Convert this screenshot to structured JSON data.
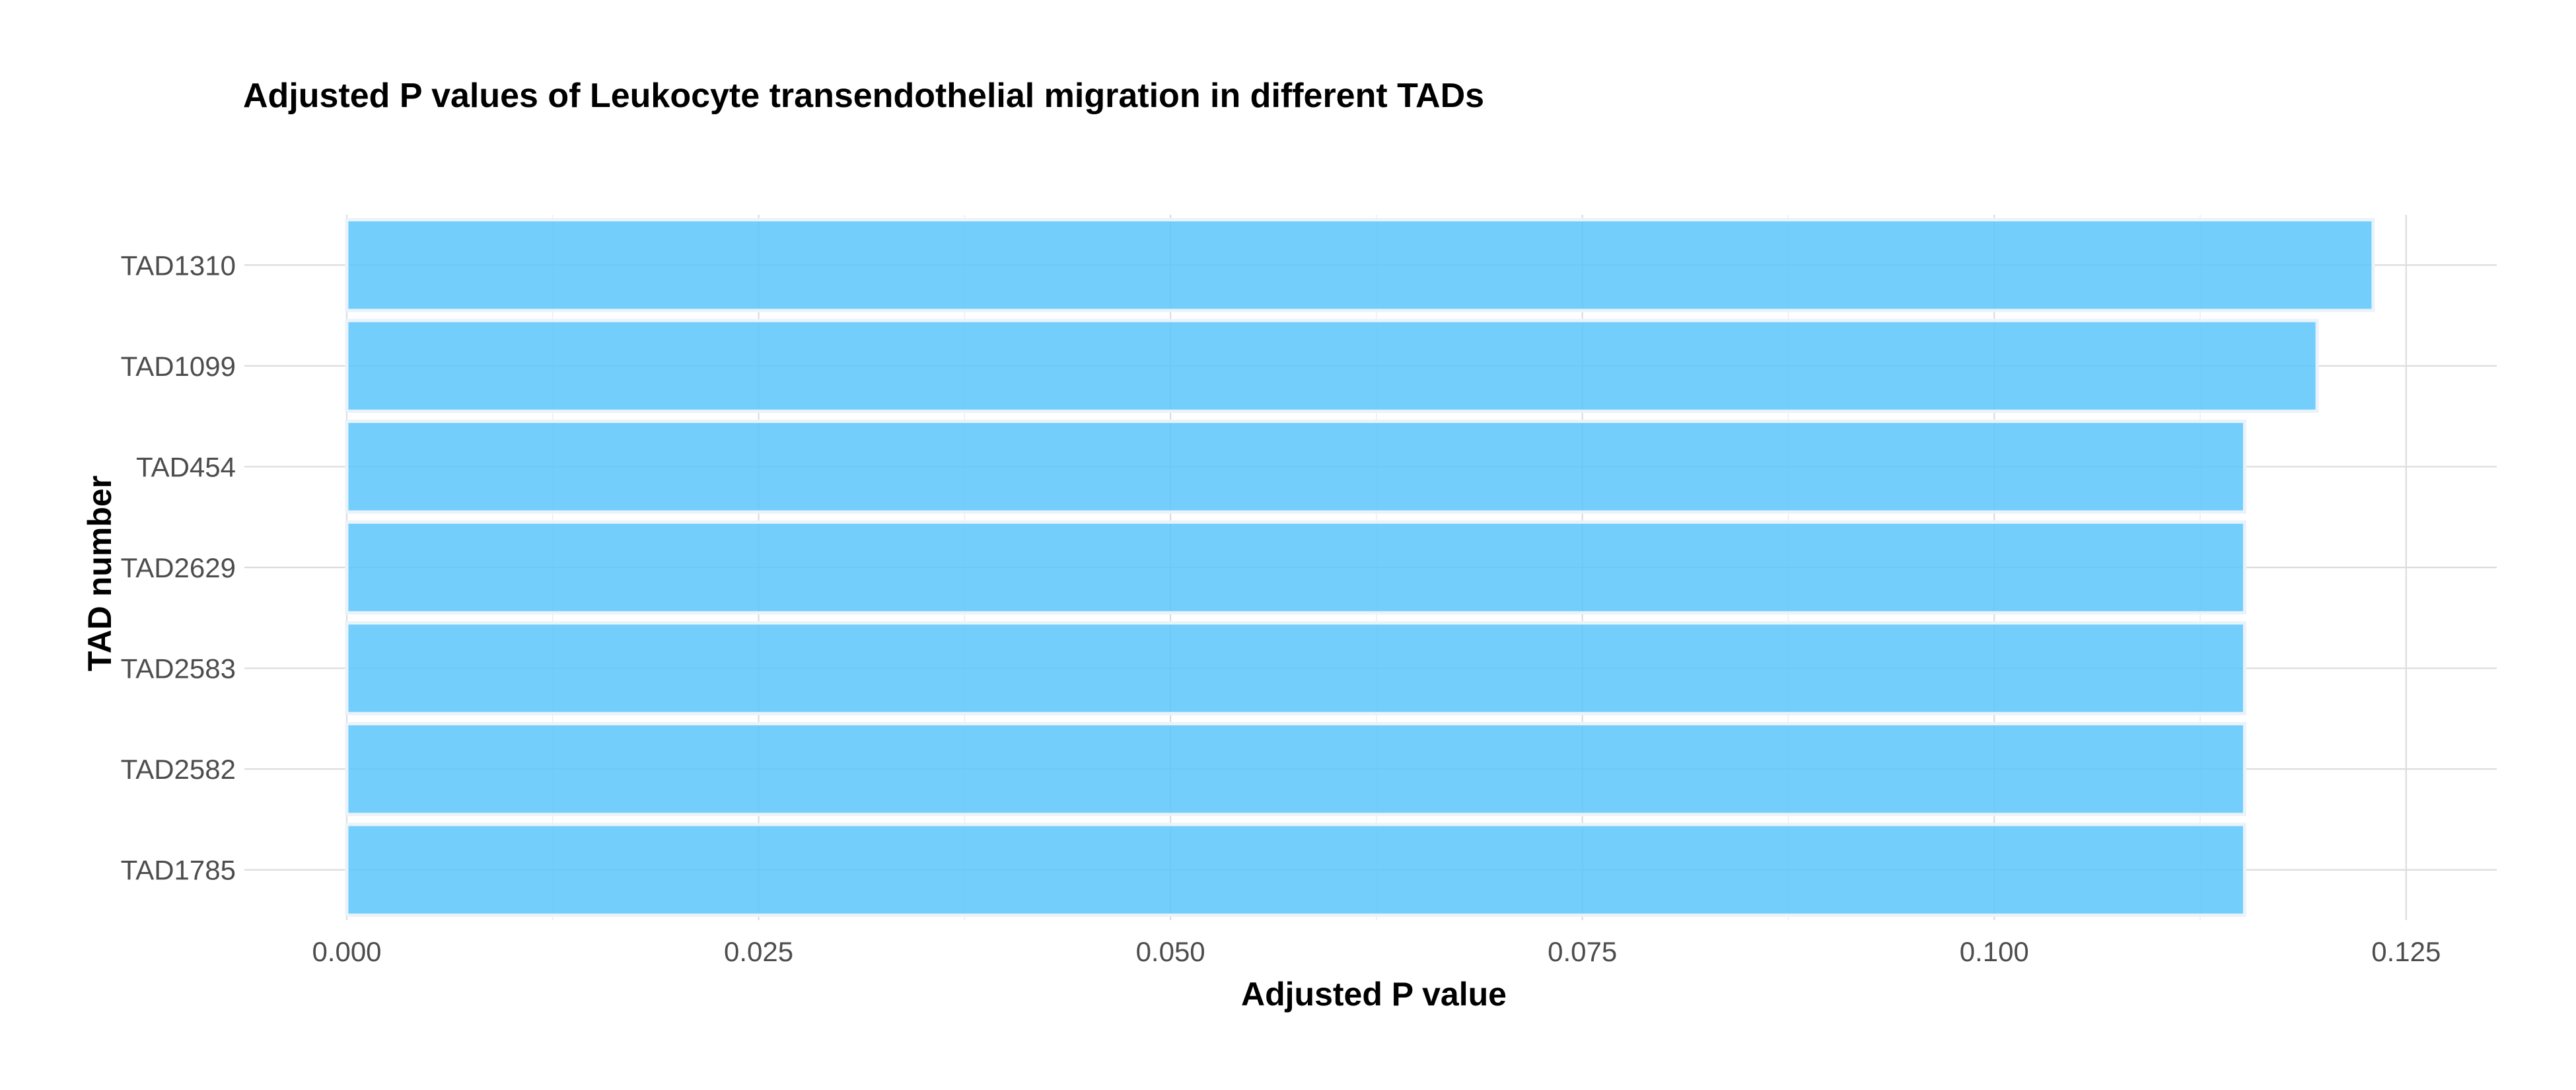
{
  "chart_data": {
    "type": "bar",
    "orientation": "horizontal",
    "title": "Adjusted P values of Leukocyte transendothelial migration in different TADs",
    "xlabel": "Adjusted P value",
    "ylabel": "TAD number",
    "categories": [
      "TAD1310",
      "TAD1099",
      "TAD454",
      "TAD2629",
      "TAD2583",
      "TAD2582",
      "TAD1785"
    ],
    "values": [
      0.123,
      0.1196,
      0.1152,
      0.1152,
      0.1152,
      0.1152,
      0.1152
    ],
    "xlim": [
      0,
      0.125
    ],
    "xticks": [
      0,
      0.025,
      0.05,
      0.075,
      0.1,
      0.125
    ],
    "xtick_labels": [
      "0.000",
      "0.025",
      "0.050",
      "0.075",
      "0.100",
      "0.125"
    ],
    "grid": true,
    "legend": "none",
    "colors": {
      "bar_fill": "#5bc6fb",
      "bar_stroke": "#eaf2fa",
      "grid_major": "#dcdcdc",
      "grid_minor": "#ececec",
      "title": "#000000",
      "tick_labels": "#4d4d4d"
    }
  }
}
